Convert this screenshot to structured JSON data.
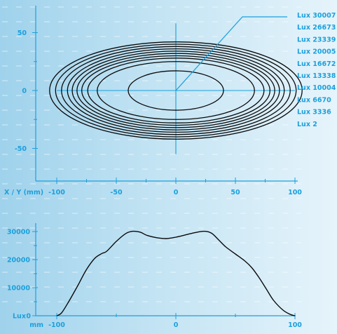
{
  "colors": {
    "accent": "#1ca0dc",
    "contour": "#0a0a0a",
    "grid": "#ffffff"
  },
  "chart_data": [
    {
      "type": "contour",
      "axis_label": "X / Y (mm)",
      "xlim": [
        -100,
        100
      ],
      "ylim": [
        -60,
        60
      ],
      "x_ticks": [
        "-100",
        "-50",
        "0",
        "50",
        "100"
      ],
      "y_ticks": [
        "50",
        "0",
        "-50"
      ],
      "legend": [
        "Lux 30007",
        "Lux 26673",
        "Lux 23339",
        "Lux 20005",
        "Lux 16672",
        "Lux 13338",
        "Lux 10004",
        "Lux 6670",
        "Lux 3336",
        "Lux 2"
      ],
      "legend_position": "top-right",
      "ellipses": [
        {
          "rx": 40,
          "ry": 17
        },
        {
          "rx": 66,
          "ry": 25
        },
        {
          "rx": 74,
          "ry": 28
        },
        {
          "rx": 79,
          "ry": 30
        },
        {
          "rx": 83,
          "ry": 32
        },
        {
          "rx": 87,
          "ry": 34
        },
        {
          "rx": 91,
          "ry": 36
        },
        {
          "rx": 96,
          "ry": 38
        },
        {
          "rx": 101,
          "ry": 40
        },
        {
          "rx": 106,
          "ry": 42
        }
      ]
    },
    {
      "type": "line",
      "x_unit": "mm",
      "y_unit": "Lux",
      "xlim": [
        -100,
        100
      ],
      "ylim": [
        0,
        30000
      ],
      "x_ticks": [
        "-100",
        "0",
        "100"
      ],
      "y_ticks": [
        "30000",
        "20000",
        "10000",
        "0"
      ],
      "x": [
        -100,
        -96,
        -90,
        -82,
        -75,
        -68,
        -62,
        -58,
        -50,
        -42,
        -36,
        -30,
        -24,
        -16,
        -8,
        0,
        8,
        16,
        24,
        30,
        36,
        42,
        50,
        58,
        64,
        70,
        76,
        82,
        90,
        96,
        100
      ],
      "y": [
        0,
        1000,
        5000,
        11000,
        16500,
        20500,
        22200,
        23000,
        26500,
        29300,
        30100,
        29800,
        28600,
        27800,
        27500,
        28000,
        28800,
        29600,
        30100,
        29400,
        27000,
        24500,
        22000,
        19500,
        17000,
        13500,
        9500,
        5500,
        2000,
        500,
        0
      ]
    }
  ]
}
